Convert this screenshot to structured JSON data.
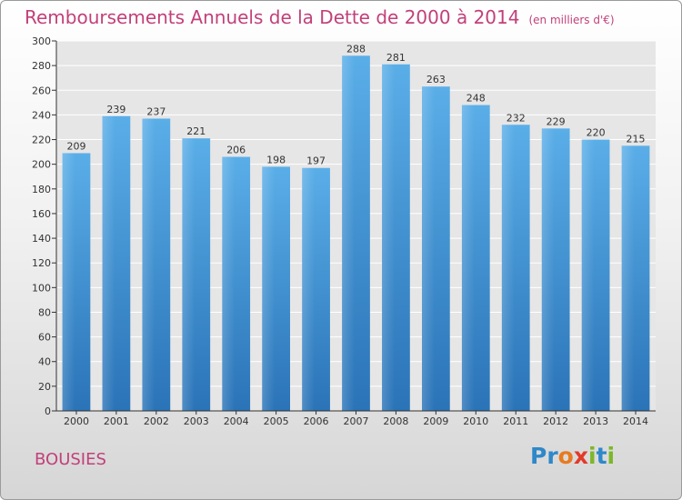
{
  "header": {
    "title": "Remboursements Annuels de la Dette de 2000 à 2014",
    "subtitle": "(en milliers d'€)"
  },
  "footer": {
    "place": "BOUSIES",
    "logo": [
      "P",
      "r",
      "o",
      "x",
      "i",
      "t",
      "i"
    ]
  },
  "colors": {
    "bar_top": "#5aaee8",
    "bar_bottom": "#2a73b7",
    "title": "#c2407a",
    "logo": [
      "#2e88c9",
      "#2e88c9",
      "#e87b1f",
      "#e23a2a",
      "#7cb729",
      "#2e88c9",
      "#7cb729"
    ]
  },
  "chart_data": {
    "type": "bar",
    "title": "Remboursements Annuels de la Dette de 2000 à 2014",
    "unit": "(en milliers d'€)",
    "categories": [
      "2000",
      "2001",
      "2002",
      "2003",
      "2004",
      "2005",
      "2006",
      "2007",
      "2008",
      "2009",
      "2010",
      "2011",
      "2012",
      "2013",
      "2014"
    ],
    "values": [
      209,
      239,
      237,
      221,
      206,
      198,
      197,
      288,
      281,
      263,
      248,
      232,
      229,
      220,
      215
    ],
    "ylim": [
      0,
      300
    ],
    "yticks": [
      0,
      20,
      40,
      60,
      80,
      100,
      120,
      140,
      160,
      180,
      200,
      220,
      240,
      260,
      280,
      300
    ],
    "grid": true
  }
}
